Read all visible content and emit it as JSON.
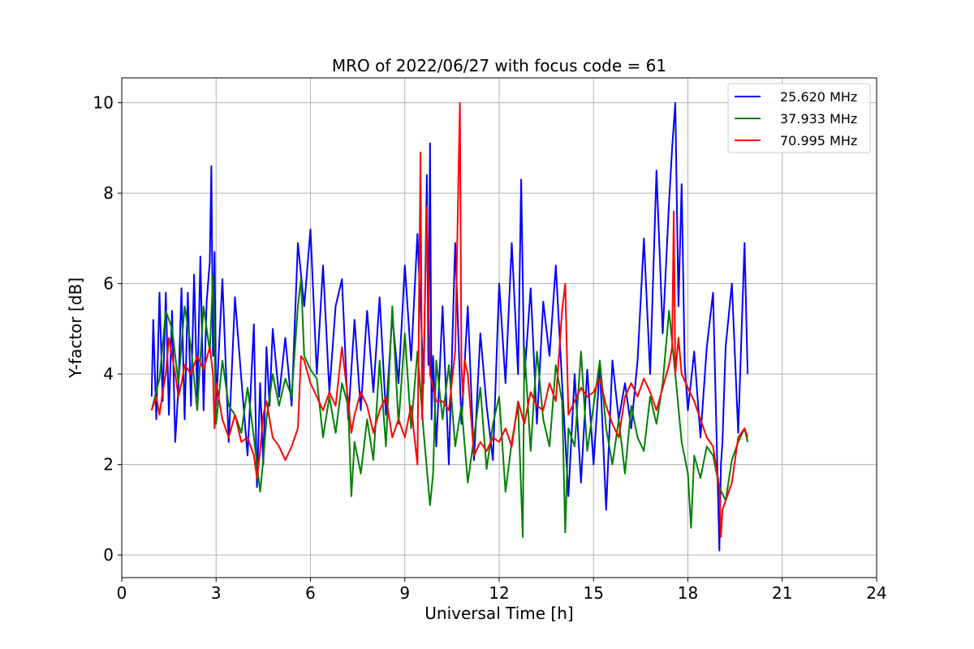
{
  "chart_data": {
    "type": "line",
    "title": "MRO of 2022/06/27 with focus code = 61",
    "xlabel": "Universal Time [h]",
    "ylabel": "Y-factor [dB]",
    "xlim": [
      0,
      24
    ],
    "ylim": [
      -0.5,
      10.55
    ],
    "xticks": [
      0,
      3,
      6,
      9,
      12,
      15,
      18,
      21,
      24
    ],
    "yticks": [
      0,
      2,
      4,
      6,
      8,
      10
    ],
    "grid": true,
    "legend_position": "top-right",
    "series": [
      {
        "name": "25.620 MHz",
        "color": "#0000ff",
        "x": [
          0.95,
          1.0,
          1.1,
          1.2,
          1.3,
          1.4,
          1.5,
          1.6,
          1.7,
          1.8,
          1.9,
          2.0,
          2.1,
          2.2,
          2.3,
          2.4,
          2.5,
          2.6,
          2.7,
          2.8,
          2.85,
          2.9,
          2.95,
          3.0,
          3.2,
          3.4,
          3.6,
          3.8,
          4.0,
          4.2,
          4.3,
          4.4,
          4.5,
          4.6,
          4.7,
          4.8,
          5.0,
          5.2,
          5.4,
          5.6,
          5.8,
          6.0,
          6.2,
          6.4,
          6.6,
          6.8,
          7.0,
          7.2,
          7.4,
          7.6,
          7.8,
          8.0,
          8.2,
          8.4,
          8.6,
          8.8,
          9.0,
          9.2,
          9.4,
          9.6,
          9.7,
          9.75,
          9.8,
          9.85,
          9.9,
          10.0,
          10.2,
          10.4,
          10.6,
          10.8,
          11.0,
          11.2,
          11.4,
          11.6,
          11.8,
          12.0,
          12.2,
          12.4,
          12.6,
          12.7,
          12.8,
          13.0,
          13.2,
          13.4,
          13.6,
          13.8,
          14.0,
          14.2,
          14.4,
          14.6,
          14.8,
          15.0,
          15.2,
          15.4,
          15.6,
          15.8,
          16.0,
          16.2,
          16.4,
          16.6,
          16.8,
          17.0,
          17.2,
          17.4,
          17.5,
          17.6,
          17.7,
          17.8,
          17.9,
          18.0,
          18.2,
          18.4,
          18.6,
          18.8,
          19.0,
          19.05,
          19.1,
          19.2,
          19.4,
          19.6,
          19.8,
          19.9
        ],
        "y": [
          3.5,
          5.2,
          3.0,
          5.8,
          3.4,
          5.8,
          3.1,
          5.4,
          2.5,
          3.7,
          5.9,
          3.0,
          5.8,
          3.3,
          6.2,
          3.5,
          6.6,
          3.2,
          5.6,
          6.5,
          8.6,
          4.4,
          6.7,
          3.3,
          6.1,
          2.5,
          5.7,
          3.9,
          2.2,
          5.1,
          1.5,
          3.8,
          2.0,
          4.6,
          3.3,
          5.0,
          3.5,
          4.8,
          3.3,
          6.9,
          5.5,
          7.2,
          4.0,
          6.4,
          3.6,
          5.5,
          6.1,
          3.0,
          5.2,
          3.2,
          5.4,
          3.6,
          5.7,
          3.1,
          5.3,
          3.8,
          6.4,
          4.3,
          7.1,
          3.8,
          8.4,
          4.2,
          9.1,
          3.0,
          4.4,
          2.4,
          5.5,
          2.0,
          6.9,
          2.9,
          5.5,
          2.1,
          4.9,
          3.3,
          2.1,
          6.0,
          3.8,
          6.9,
          4.0,
          8.3,
          3.9,
          5.9,
          2.9,
          5.6,
          4.4,
          6.4,
          3.8,
          1.3,
          4.0,
          1.6,
          4.1,
          2.0,
          4.2,
          1.0,
          4.3,
          3.0,
          3.8,
          2.8,
          4.3,
          7.0,
          4.0,
          8.5,
          4.9,
          7.8,
          9.0,
          10.0,
          5.5,
          8.2,
          4.2,
          3.2,
          4.5,
          2.6,
          4.6,
          5.8,
          0.1,
          2.0,
          2.5,
          4.6,
          6.0,
          2.7,
          6.9,
          4.0
        ]
      },
      {
        "name": "37.933 MHz",
        "color": "#008000",
        "x": [
          0.95,
          1.2,
          1.4,
          1.6,
          1.8,
          2.0,
          2.2,
          2.4,
          2.6,
          2.8,
          2.9,
          3.0,
          3.2,
          3.4,
          3.6,
          3.8,
          4.0,
          4.2,
          4.4,
          4.5,
          4.6,
          4.8,
          5.0,
          5.2,
          5.4,
          5.6,
          5.7,
          5.8,
          6.0,
          6.2,
          6.4,
          6.6,
          6.8,
          7.0,
          7.2,
          7.3,
          7.4,
          7.6,
          7.8,
          8.0,
          8.2,
          8.4,
          8.6,
          8.8,
          9.0,
          9.2,
          9.4,
          9.6,
          9.8,
          9.9,
          10.0,
          10.2,
          10.4,
          10.6,
          10.8,
          11.0,
          11.2,
          11.4,
          11.6,
          11.8,
          12.0,
          12.2,
          12.4,
          12.6,
          12.75,
          12.8,
          13.0,
          13.2,
          13.4,
          13.6,
          13.8,
          14.0,
          14.1,
          14.2,
          14.4,
          14.6,
          14.8,
          15.0,
          15.2,
          15.4,
          15.6,
          15.8,
          16.0,
          16.2,
          16.4,
          16.6,
          16.8,
          17.0,
          17.2,
          17.4,
          17.6,
          17.8,
          18.0,
          18.1,
          18.2,
          18.4,
          18.6,
          18.8,
          19.0,
          19.2,
          19.4,
          19.6,
          19.8,
          19.9
        ],
        "y": [
          3.2,
          3.9,
          5.4,
          5.0,
          3.8,
          5.5,
          4.6,
          3.2,
          5.5,
          4.5,
          6.2,
          2.9,
          4.3,
          3.3,
          3.1,
          2.7,
          3.7,
          2.6,
          1.4,
          2.1,
          3.0,
          4.0,
          3.3,
          3.9,
          3.5,
          5.5,
          6.1,
          4.4,
          4.1,
          3.9,
          2.6,
          3.5,
          2.7,
          3.8,
          3.3,
          1.3,
          2.5,
          1.8,
          3.0,
          2.1,
          4.3,
          2.4,
          5.5,
          2.9,
          4.9,
          2.8,
          4.5,
          2.7,
          1.1,
          1.8,
          4.3,
          3.0,
          4.2,
          2.4,
          3.3,
          1.6,
          2.6,
          3.7,
          1.9,
          2.9,
          3.5,
          1.4,
          2.5,
          3.3,
          0.4,
          4.6,
          2.3,
          4.5,
          3.0,
          2.4,
          4.2,
          3.4,
          0.5,
          2.8,
          2.4,
          4.5,
          2.3,
          3.3,
          4.3,
          2.8,
          2.0,
          3.0,
          1.8,
          3.3,
          2.6,
          2.3,
          3.5,
          2.9,
          3.8,
          5.4,
          4.0,
          2.5,
          1.8,
          0.6,
          2.2,
          1.7,
          2.4,
          2.2,
          1.5,
          1.2,
          2.1,
          2.5,
          2.8,
          2.5
        ]
      },
      {
        "name": "70.995 MHz",
        "color": "#ff0000",
        "x": [
          0.95,
          1.1,
          1.2,
          1.3,
          1.4,
          1.5,
          1.6,
          1.7,
          1.8,
          1.9,
          2.0,
          2.2,
          2.4,
          2.6,
          2.8,
          2.9,
          2.95,
          3.0,
          3.2,
          3.4,
          3.6,
          3.8,
          4.0,
          4.2,
          4.3,
          4.4,
          4.5,
          4.6,
          4.8,
          5.0,
          5.2,
          5.4,
          5.6,
          5.7,
          5.8,
          6.0,
          6.2,
          6.4,
          6.6,
          6.8,
          7.0,
          7.2,
          7.3,
          7.4,
          7.6,
          7.8,
          8.0,
          8.2,
          8.4,
          8.6,
          8.8,
          9.0,
          9.2,
          9.4,
          9.5,
          9.55,
          9.6,
          9.7,
          9.8,
          10.0,
          10.2,
          10.4,
          10.6,
          10.75,
          10.8,
          10.85,
          10.9,
          11.0,
          11.2,
          11.4,
          11.6,
          11.8,
          12.0,
          12.2,
          12.4,
          12.6,
          12.8,
          13.0,
          13.2,
          13.4,
          13.6,
          13.8,
          14.0,
          14.1,
          14.2,
          14.4,
          14.6,
          14.8,
          15.0,
          15.2,
          15.4,
          15.6,
          15.8,
          16.0,
          16.2,
          16.4,
          16.6,
          16.8,
          17.0,
          17.2,
          17.4,
          17.5,
          17.55,
          17.6,
          17.7,
          17.8,
          18.0,
          18.2,
          18.4,
          18.6,
          18.8,
          19.0,
          19.05,
          19.1,
          19.2,
          19.4,
          19.6,
          19.8,
          19.9
        ],
        "y": [
          3.2,
          3.5,
          3.1,
          3.6,
          4.0,
          4.8,
          4.4,
          4.0,
          3.5,
          3.8,
          4.2,
          4.0,
          4.4,
          4.1,
          4.6,
          4.0,
          2.8,
          3.8,
          3.0,
          2.6,
          3.1,
          2.5,
          2.6,
          2.2,
          1.7,
          2.3,
          3.1,
          3.4,
          2.6,
          2.4,
          2.1,
          2.4,
          2.8,
          4.4,
          4.3,
          3.8,
          3.5,
          3.2,
          3.6,
          3.3,
          4.6,
          3.4,
          2.7,
          3.1,
          3.6,
          3.3,
          2.7,
          3.2,
          3.5,
          2.6,
          3.0,
          2.6,
          3.3,
          2.0,
          8.9,
          3.0,
          4.2,
          7.7,
          4.0,
          3.4,
          3.4,
          3.2,
          4.5,
          10.0,
          4.2,
          3.5,
          4.3,
          4.0,
          2.2,
          2.5,
          2.3,
          2.6,
          2.5,
          2.8,
          2.4,
          3.4,
          2.9,
          3.6,
          3.3,
          3.2,
          3.8,
          3.4,
          5.4,
          6.0,
          3.1,
          3.4,
          3.7,
          3.5,
          3.6,
          3.9,
          3.3,
          2.9,
          2.6,
          3.5,
          3.8,
          3.5,
          3.9,
          3.6,
          3.2,
          3.7,
          4.2,
          4.6,
          7.6,
          4.0,
          4.8,
          4.0,
          3.7,
          3.4,
          3.0,
          2.6,
          2.4,
          1.5,
          0.4,
          1.0,
          1.2,
          1.6,
          2.6,
          2.8,
          2.6
        ]
      }
    ]
  }
}
